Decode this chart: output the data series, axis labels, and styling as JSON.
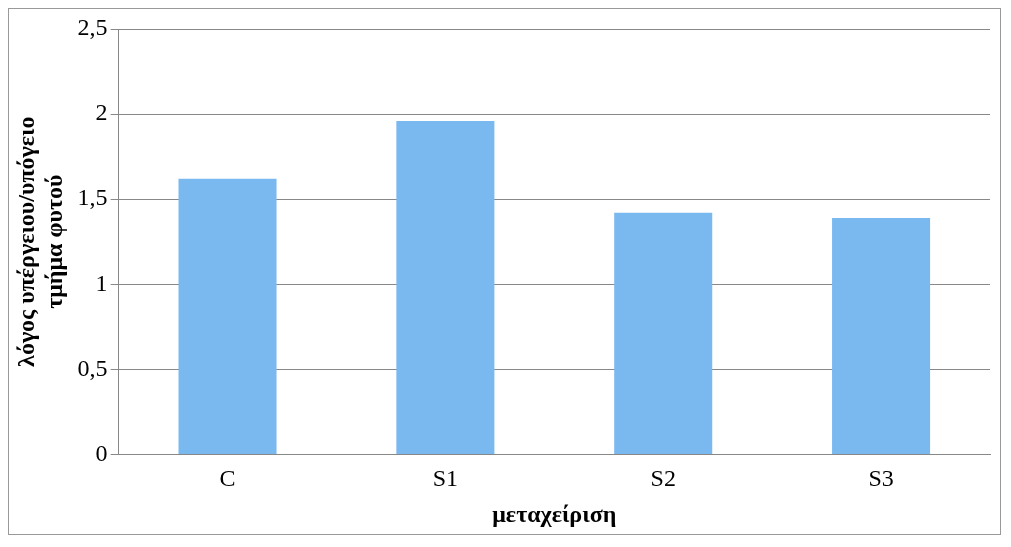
{
  "chart_data": {
    "type": "bar",
    "xlabel": "μεταχείριση",
    "ylabel": "λόγος υπέργειου/υπόγειο\nτμήμα φυτού",
    "categories": [
      "C",
      "S1",
      "S2",
      "S3"
    ],
    "values": [
      1.62,
      1.96,
      1.42,
      1.39
    ],
    "color": "#7ab8f0",
    "ylim": [
      0,
      2.5
    ],
    "yticks": [
      0,
      {
        "value": 0.5,
        "label": "0,5"
      },
      1,
      {
        "value": 1.5,
        "label": "1,5"
      },
      2,
      {
        "value": 2.5,
        "label": "2,5"
      }
    ],
    "grid": "y"
  }
}
